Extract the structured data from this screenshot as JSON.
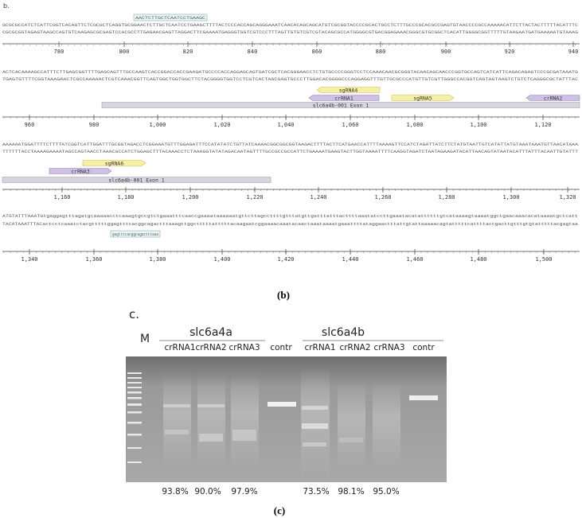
{
  "panel_b": {
    "label": "b.",
    "caption": "(b)",
    "blocks": [
      {
        "primer": "AACTCTTGCTCAATCCTGAAGC",
        "sequence_top": "GCGCGCCATCTCATTCGGTCACAGTTCTCGCGCTCAGGTGCGGAACTCTTGCTCAATCCTGAAGCTTTTACTCCCACCAGCAGGGAAATCAACACAGCAGCATGTCGCGGTACCCCGCACTGCCTCTTTGCCCGCACGCCGAGTGTAACCCCGCCAAAAACATTCTTACTACTTTTTACATTTC",
        "sequence_bottom": "CGCGCGGTAGAGTAAGCCAGTGTCAAGAGCGCGAGTCCACGCCTTGAGAACGAGTTAGGACTTCGAAAATGAGGGTGGTCGTCCCTTTAGTTGTGTCGTCGTACAGCGCCATGGGGCGTGACGGAGAAACGGGCGTGCGGCTCACATTGGGGCGGTTTTTGTAAGAATGATGAAAAATGTAAAG",
        "ruler": [
          "780",
          "800",
          "820",
          "840",
          "860",
          "880",
          "900",
          "920",
          "940"
        ]
      },
      {
        "sequence_top": "ACTCACAAAAGCCATTTCTTGAGCGGTTTTGAGCAGTTTGCCAAGTCACCGGACCACCGAAGATGCCCCACCAGGAGCAGTGATCGCTCACGGGAACCTCTGTGCCCCGGGTCCTCCAAACAACGCGGGTACAACAGCAACCCGGTGCCAGTCATCATTCAGACAGAGTCCCGCGATAAATG",
        "sequence_bottom": "TGAGTGTTTTCGGTAAAGAACTCGCCAAAAACTCGTCAAACGGTTCAGTGGCTGGTGGCTTCTACGGGGTGGTCCTCGTCACTAGCGAGTGCCCTTGGACACGGGGCCCAGGAGGTTTGTTGCGCCCATGTTGTCGTTGGGCCACGGTCAGTAGTAAGTCTGTCTCAGGGCGCTATTTAC",
        "features": [
          "sgRNA4",
          "crRNA1",
          "sgRNA5",
          "crRNA2",
          "slc6a4b-001 Exon 1"
        ],
        "ruler": [
          "960",
          "980",
          "1,000",
          "1,020",
          "1,040",
          "1,060",
          "1,080",
          "1,100",
          "1,120"
        ]
      },
      {
        "sequence_top": "AAAAAATGGATTTTCTTTTATCGGTCATTGGATTTGCGGTAGACCTCGGAAATGTTTGGAGATTTCCATATATCTGTTATCAAAACGGCGGCGGTAAGACTTTTACTTCATGAACCATTTTAAAAGTTCCATCTAGATTATCTTCTATGTAATTGTCATATTATGTAAATAAATGTTAACATAAA",
        "sequence_bottom": "TTTTTTACCTAAAAGAAAATAGCCAGTAACCTAAACGCCATCTGGAGCTTTACAAACCTCTAAAGGTATATAGACAATAGTTTTGCCGCCGCCATTCTGAAAATGAAGTACTTGGTAAAATTTTCAAGGTAGATCTAATAGAAGATACATTAACAGTATAATACATTTATTTACAATTGTATTT",
        "features": [
          "sgRNA6",
          "crRNA3",
          "slc6a4b-001 Exon 1"
        ],
        "ruler": [
          "1,160",
          "1,180",
          "1,200",
          "1,220",
          "1,240",
          "1,260",
          "1,280",
          "1,300",
          "1,320"
        ]
      },
      {
        "primer": "gagtttcacggcagactttaaa",
        "sequence_top": "ATGTATTTAAATGtgaggagtttagatgcaaaaacctcaaagtgccgtctgaaatttcaaccgaaaataaaaaatgttcttagccttttgtttatgttgatttatttacttttaaatatccttgaaatacatattttttgtcataaaagtaaaatggctgaacaaacacataaaatgctcatt",
        "sequence_bottom": "TACATAAATTTACactcctcaaatctacgtttttggagtttcacggcagactttaaagttggctttttatttttacaagaatcggaaaacaaatacaactaaataaaatgaaattttataggaactttattgtattaaaaacagtatttttcattttaccgacttgtttgtgtatttttacgagtaa",
        "ruler": [
          "1,340",
          "1,360",
          "1,380",
          "1,400",
          "1,420",
          "1,440",
          "1,460",
          "1,480",
          "1,500"
        ]
      }
    ]
  },
  "panel_c": {
    "label": "c.",
    "marker": "M",
    "caption": "(c)",
    "groups": [
      {
        "name": "slc6a4a",
        "lanes": [
          "crRNA1",
          "crRNA2",
          "crRNA3",
          "contr"
        ]
      },
      {
        "name": "slc6a4b",
        "lanes": [
          "crRNA1",
          "crRNA2",
          "crRNA3",
          "contr"
        ]
      }
    ],
    "efficiencies": [
      "93.8%",
      "90.0%",
      "97.9%",
      "73.5%",
      "98.1%",
      "95.0%"
    ]
  }
}
